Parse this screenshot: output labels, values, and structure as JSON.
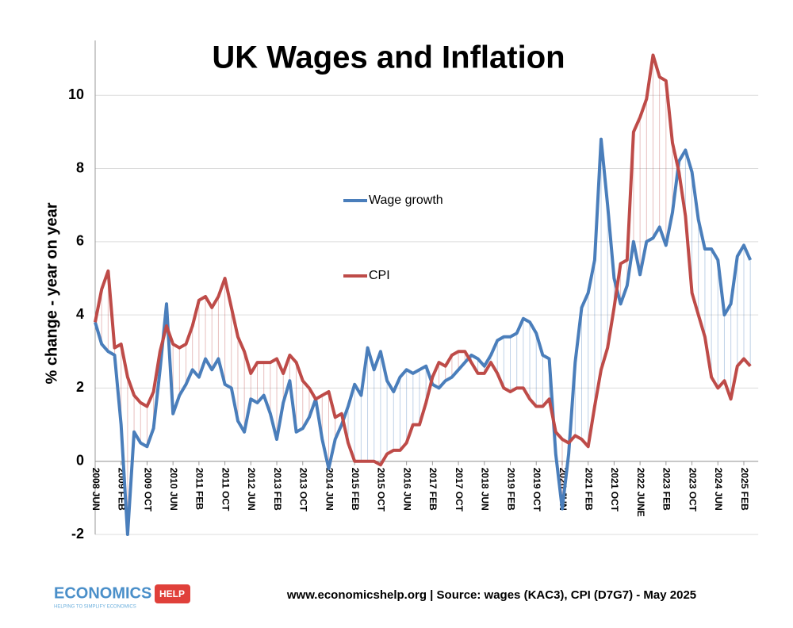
{
  "chart_data": {
    "type": "line",
    "title": "UK Wages and Inflation",
    "y_label": "% change - year on year",
    "source": "www.economicshelp.org | Source: wages (KAC3), CPI (D7G7) - May 2025",
    "logo": {
      "left": "ECONOMICS",
      "right": "HELP",
      "tagline": "HELPING TO SIMPLIFY ECONOMICS"
    },
    "ylim": [
      -2,
      11.5
    ],
    "yticks": [
      -2,
      0,
      2,
      4,
      6,
      8,
      10
    ],
    "grid": true,
    "legend_position": "center",
    "categories": [
      "2008 JUN",
      null,
      null,
      null,
      "2009 FEB",
      null,
      null,
      null,
      "2009 OCT",
      null,
      null,
      null,
      "2010 JUN",
      null,
      null,
      null,
      "2011 FEB",
      null,
      null,
      null,
      "2011 OCT",
      null,
      null,
      null,
      "2012 JUN",
      null,
      null,
      null,
      "2013 FEB",
      null,
      null,
      null,
      "2013 OCT",
      null,
      null,
      null,
      "2014 JUN",
      null,
      null,
      null,
      "2015 FEB",
      null,
      null,
      null,
      "2015 OCT",
      null,
      null,
      null,
      "2016 JUN",
      null,
      null,
      null,
      "2017 FEB",
      null,
      null,
      null,
      "2017 OCT",
      null,
      null,
      null,
      "2018 JUN",
      null,
      null,
      null,
      "2019 FEB",
      null,
      null,
      null,
      "2019 OCT",
      null,
      null,
      null,
      "2020 JUN",
      null,
      null,
      null,
      "2021 FEB",
      null,
      null,
      null,
      "2021 OCT",
      null,
      null,
      null,
      "2022 JUNE",
      null,
      null,
      null,
      "2023 FEB",
      null,
      null,
      null,
      "2023 OCT",
      null,
      null,
      null,
      "2024 JUN",
      null,
      null,
      null,
      "2025 FEB",
      null
    ],
    "series": [
      {
        "name": "Wage growth",
        "color": "#4a7ebb",
        "values": [
          3.8,
          3.2,
          3.0,
          2.9,
          1.0,
          -2.0,
          0.8,
          0.5,
          0.4,
          0.9,
          2.5,
          4.3,
          1.3,
          1.8,
          2.1,
          2.5,
          2.3,
          2.8,
          2.5,
          2.8,
          2.1,
          2.0,
          1.1,
          0.8,
          1.7,
          1.6,
          1.8,
          1.3,
          0.6,
          1.6,
          2.2,
          0.8,
          0.9,
          1.2,
          1.7,
          0.6,
          -0.2,
          0.6,
          1.0,
          1.5,
          2.1,
          1.8,
          3.1,
          2.5,
          3.0,
          2.2,
          1.9,
          2.3,
          2.5,
          2.4,
          2.5,
          2.6,
          2.1,
          2.0,
          2.2,
          2.3,
          2.5,
          2.7,
          2.9,
          2.8,
          2.6,
          2.9,
          3.3,
          3.4,
          3.4,
          3.5,
          3.9,
          3.8,
          3.5,
          2.9,
          2.8,
          0.2,
          -1.3,
          0.2,
          2.7,
          4.2,
          4.6,
          5.5,
          8.8,
          7.0,
          5.0,
          4.3,
          4.8,
          6.0,
          5.1,
          6.0,
          6.1,
          6.4,
          5.9,
          6.8,
          8.2,
          8.5,
          7.9,
          6.6,
          5.8,
          5.8,
          5.5,
          4.0,
          4.3,
          5.6,
          5.9,
          5.5
        ]
      },
      {
        "name": "CPI",
        "color": "#be4b48",
        "values": [
          3.8,
          4.7,
          5.2,
          3.1,
          3.2,
          2.3,
          1.8,
          1.6,
          1.5,
          1.9,
          3.0,
          3.7,
          3.2,
          3.1,
          3.2,
          3.7,
          4.4,
          4.5,
          4.2,
          4.5,
          5.0,
          4.2,
          3.4,
          3.0,
          2.4,
          2.7,
          2.7,
          2.7,
          2.8,
          2.4,
          2.9,
          2.7,
          2.2,
          2.0,
          1.7,
          1.8,
          1.9,
          1.2,
          1.3,
          0.5,
          0.0,
          0.0,
          0.0,
          0.0,
          -0.1,
          0.2,
          0.3,
          0.3,
          0.5,
          1.0,
          1.0,
          1.6,
          2.3,
          2.7,
          2.6,
          2.9,
          3.0,
          3.0,
          2.7,
          2.4,
          2.4,
          2.7,
          2.4,
          2.0,
          1.9,
          2.0,
          2.0,
          1.7,
          1.5,
          1.5,
          1.7,
          0.8,
          0.6,
          0.5,
          0.7,
          0.6,
          0.4,
          1.5,
          2.5,
          3.1,
          4.2,
          5.4,
          5.5,
          9.0,
          9.4,
          9.9,
          11.1,
          10.5,
          10.4,
          8.7,
          7.9,
          6.7,
          4.6,
          4.0,
          3.4,
          2.3,
          2.0,
          2.2,
          1.7,
          2.6,
          2.8,
          2.6
        ]
      }
    ]
  }
}
